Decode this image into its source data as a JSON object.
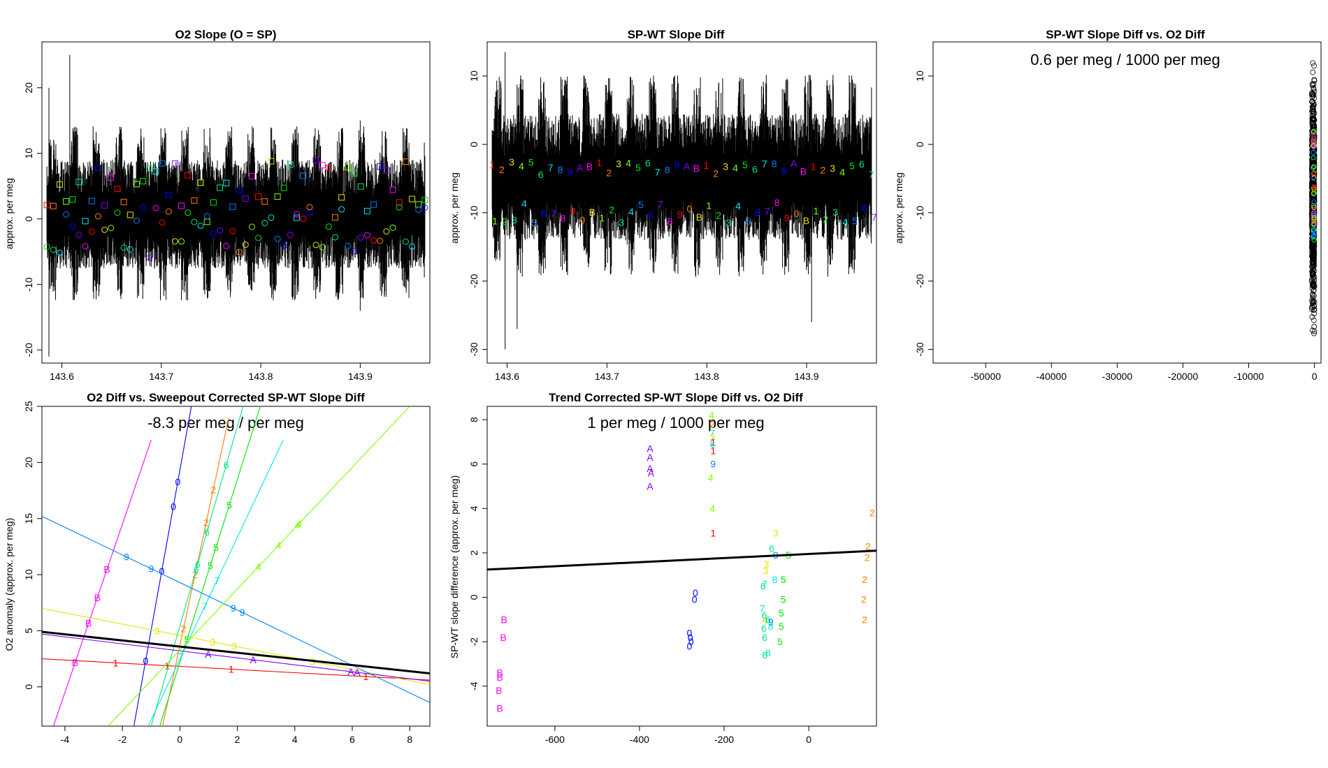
{
  "chart_data": [
    {
      "type": "line",
      "title": "O2 Slope (O = SP)",
      "xlabel": "",
      "ylabel": "approx. per meg",
      "xlim": [
        143.58,
        143.97
      ],
      "ylim": [
        -22,
        27
      ],
      "xticks": [
        143.6,
        143.7,
        143.8,
        143.9
      ],
      "yticks": [
        -20,
        -10,
        0,
        10,
        20
      ],
      "trace": {
        "x_range": [
          143.585,
          143.965
        ],
        "center": 0.5,
        "spread": 4.5,
        "color": "#000000"
      },
      "square_markers": {
        "y_band": [
          -0.5,
          9
        ],
        "count": 60
      },
      "circle_markers": {
        "y_band": [
          -6,
          2
        ],
        "count": 60
      },
      "colors": [
        "#ff0000",
        "#ff8000",
        "#e6e600",
        "#80ff00",
        "#00e600",
        "#00e680",
        "#00e6e6",
        "#0080ff",
        "#0000ff",
        "#8000ff",
        "#ff00ff"
      ]
    },
    {
      "type": "line",
      "title": "SP-WT Slope Diff",
      "xlabel": "",
      "ylabel": "approx. per meg",
      "xlim": [
        143.58,
        143.97
      ],
      "ylim": [
        -32,
        15
      ],
      "xticks": [
        143.6,
        143.7,
        143.8,
        143.9
      ],
      "yticks": [
        -30,
        -20,
        -10,
        0,
        10
      ],
      "trace": {
        "x_range": [
          143.585,
          143.965
        ],
        "center": -5,
        "spread": 5,
        "color": "#000000"
      },
      "digit_labels_upper": [
        "1",
        "2",
        "3",
        "4",
        "5",
        "6",
        "7",
        "8",
        "9",
        "A",
        "B"
      ],
      "digit_labels_lower": [
        "1",
        "2",
        "3",
        "4",
        "5",
        "6",
        "7",
        "8",
        "9",
        "0",
        "B"
      ]
    },
    {
      "type": "scatter",
      "title": "SP-WT Slope Diff vs. O2 Diff",
      "annotation": "0.6 per meg / 1000 per meg",
      "xlabel": "",
      "ylabel": "approx. per meg",
      "xlim": [
        -58000,
        1000
      ],
      "ylim": [
        -32,
        15
      ],
      "xticks": [
        -50000,
        -40000,
        -30000,
        -20000,
        -10000,
        0
      ],
      "yticks": [
        -30,
        -20,
        -10,
        0,
        10
      ],
      "cluster": {
        "x": [
          -400,
          0
        ],
        "y": [
          -31,
          14
        ]
      }
    },
    {
      "type": "scatter",
      "title": "O2 Diff vs. Sweepout Corrected SP-WT Slope Diff",
      "annotation": "-8.3 per meg / per meg",
      "xlabel": "",
      "ylabel": "O2 anomaly (approx. per meg)",
      "xlim": [
        -4.8,
        8.7
      ],
      "ylim": [
        -3.5,
        25
      ],
      "xticks": [
        -4,
        -2,
        0,
        2,
        4,
        6,
        8
      ],
      "yticks": [
        0,
        5,
        10,
        15,
        20,
        25
      ],
      "fit_line": {
        "x": [
          -4.8,
          8.7
        ],
        "y": [
          4.9,
          1.2
        ]
      },
      "colored_lines": [
        {
          "label": "B",
          "color": "#ff00ff",
          "x": [
            -4.4,
            -1.0
          ],
          "y": [
            -3.5,
            22
          ]
        },
        {
          "label": "0",
          "color": "#0000ff",
          "x": [
            -1.6,
            0.4
          ],
          "y": [
            -3.5,
            25
          ]
        },
        {
          "label": "1",
          "color": "#ff0000",
          "x": [
            -4.8,
            8.7
          ],
          "y": [
            2.5,
            0.6
          ]
        },
        {
          "label": "2",
          "color": "#ff8000",
          "x": [
            -0.6,
            1.7
          ],
          "y": [
            -3.5,
            24
          ]
        },
        {
          "label": "3",
          "color": "#e6e600",
          "x": [
            -4.8,
            8.7
          ],
          "y": [
            7.0,
            0.2
          ]
        },
        {
          "label": "5",
          "color": "#00e600",
          "x": [
            -0.7,
            2.8
          ],
          "y": [
            -3.5,
            25
          ]
        },
        {
          "label": "6",
          "color": "#00e680",
          "x": [
            -1.0,
            2.2
          ],
          "y": [
            -3.5,
            25
          ]
        },
        {
          "label": "7",
          "color": "#00e6e6",
          "x": [
            -1.1,
            3.6
          ],
          "y": [
            -3.5,
            22
          ]
        },
        {
          "label": "9",
          "color": "#0080ff",
          "x": [
            -4.8,
            8.7
          ],
          "y": [
            15.2,
            -1.4
          ]
        },
        {
          "label": "A",
          "color": "#8000ff",
          "x": [
            -4.8,
            8.7
          ],
          "y": [
            4.7,
            0.5
          ]
        },
        {
          "label": "4",
          "color": "#80ff00",
          "x": [
            -2.5,
            8.0
          ],
          "y": [
            -3.5,
            25
          ]
        }
      ]
    },
    {
      "type": "scatter",
      "title": "Trend Corrected SP-WT Slope Diff vs. O2 Diff",
      "annotation": "1 per meg / 1000 per meg",
      "xlabel": "",
      "ylabel": "SP-WT slope difference (approx. per meg)",
      "xlim": [
        -760,
        160
      ],
      "ylim": [
        -5.8,
        8.6
      ],
      "xticks": [
        -600,
        -400,
        -200,
        0
      ],
      "yticks": [
        -4,
        -2,
        0,
        2,
        4,
        6,
        8
      ],
      "fit_line": {
        "x": [
          -760,
          160
        ],
        "y": [
          1.25,
          2.1
        ]
      },
      "points": [
        {
          "t": "B",
          "x": -720,
          "y": -1.0,
          "c": "#ff00ff"
        },
        {
          "t": "B",
          "x": -722,
          "y": -1.8,
          "c": "#ff00ff"
        },
        {
          "t": "B",
          "x": -730,
          "y": -3.4,
          "c": "#ff00ff"
        },
        {
          "t": "B",
          "x": -730,
          "y": -3.6,
          "c": "#ff00ff"
        },
        {
          "t": "B",
          "x": -732,
          "y": -4.2,
          "c": "#ff00ff"
        },
        {
          "t": "B",
          "x": -730,
          "y": -5.0,
          "c": "#ff00ff"
        },
        {
          "t": "A",
          "x": -375,
          "y": 6.7,
          "c": "#8000ff"
        },
        {
          "t": "A",
          "x": -375,
          "y": 6.3,
          "c": "#8000ff"
        },
        {
          "t": "A",
          "x": -375,
          "y": 5.8,
          "c": "#8000ff"
        },
        {
          "t": "A",
          "x": -373,
          "y": 5.6,
          "c": "#8000ff"
        },
        {
          "t": "A",
          "x": -375,
          "y": 5.0,
          "c": "#8000ff"
        },
        {
          "t": "0",
          "x": -268,
          "y": 0.2,
          "c": "#0000ff"
        },
        {
          "t": "0",
          "x": -270,
          "y": -0.1,
          "c": "#0000ff"
        },
        {
          "t": "0",
          "x": -282,
          "y": -1.6,
          "c": "#0000ff"
        },
        {
          "t": "0",
          "x": -280,
          "y": -1.8,
          "c": "#0000ff"
        },
        {
          "t": "0",
          "x": -278,
          "y": -2.0,
          "c": "#0000ff"
        },
        {
          "t": "0",
          "x": -282,
          "y": -2.2,
          "c": "#0000ff"
        },
        {
          "t": "4",
          "x": -230,
          "y": 8.2,
          "c": "#80ff00"
        },
        {
          "t": "2",
          "x": -228,
          "y": 7.8,
          "c": "#ff8000"
        },
        {
          "t": "7",
          "x": -228,
          "y": 7.4,
          "c": "#00e6e6"
        },
        {
          "t": "3",
          "x": -227,
          "y": 7.2,
          "c": "#e6e600"
        },
        {
          "t": "1",
          "x": -226,
          "y": 7.0,
          "c": "#ff0000"
        },
        {
          "t": "8",
          "x": -228,
          "y": 6.9,
          "c": "#00e6e6"
        },
        {
          "t": "1",
          "x": -226,
          "y": 6.6,
          "c": "#ff0000"
        },
        {
          "t": "9",
          "x": -226,
          "y": 6.0,
          "c": "#0080ff"
        },
        {
          "t": "4",
          "x": -232,
          "y": 5.4,
          "c": "#80ff00"
        },
        {
          "t": "4",
          "x": -228,
          "y": 4.0,
          "c": "#80ff00"
        },
        {
          "t": "1",
          "x": -226,
          "y": 2.9,
          "c": "#ff0000"
        },
        {
          "t": "3",
          "x": -78,
          "y": 2.9,
          "c": "#e6e600"
        },
        {
          "t": "6",
          "x": -88,
          "y": 2.2,
          "c": "#00e680"
        },
        {
          "t": "9",
          "x": -78,
          "y": 1.9,
          "c": "#0080ff"
        },
        {
          "t": "5",
          "x": -48,
          "y": 1.9,
          "c": "#00e600"
        },
        {
          "t": "3",
          "x": -100,
          "y": 1.5,
          "c": "#e6e600"
        },
        {
          "t": "3",
          "x": -102,
          "y": 1.2,
          "c": "#e6e600"
        },
        {
          "t": "8",
          "x": -80,
          "y": 0.8,
          "c": "#00e6e6"
        },
        {
          "t": "5",
          "x": -60,
          "y": 0.8,
          "c": "#00e600"
        },
        {
          "t": "7",
          "x": -104,
          "y": 0.6,
          "c": "#00e6e6"
        },
        {
          "t": "6",
          "x": -108,
          "y": 0.5,
          "c": "#00e680"
        },
        {
          "t": "5",
          "x": -60,
          "y": -0.1,
          "c": "#00e600"
        },
        {
          "t": "7",
          "x": -110,
          "y": -0.5,
          "c": "#00e6e6"
        },
        {
          "t": "5",
          "x": -65,
          "y": -0.7,
          "c": "#00e600"
        },
        {
          "t": "6",
          "x": -105,
          "y": -0.8,
          "c": "#00e680"
        },
        {
          "t": "4",
          "x": -104,
          "y": -1.0,
          "c": "#80ff00"
        },
        {
          "t": "6",
          "x": -96,
          "y": -1.0,
          "c": "#00e680"
        },
        {
          "t": "9",
          "x": -90,
          "y": -1.1,
          "c": "#0080ff"
        },
        {
          "t": "8",
          "x": -90,
          "y": -1.3,
          "c": "#00e6e6"
        },
        {
          "t": "5",
          "x": -65,
          "y": -1.3,
          "c": "#00e600"
        },
        {
          "t": "6",
          "x": -106,
          "y": -1.4,
          "c": "#00e680"
        },
        {
          "t": "6",
          "x": -104,
          "y": -1.8,
          "c": "#00e680"
        },
        {
          "t": "5",
          "x": -68,
          "y": -2.0,
          "c": "#00e600"
        },
        {
          "t": "8",
          "x": -96,
          "y": -2.5,
          "c": "#00e6e6"
        },
        {
          "t": "6",
          "x": -104,
          "y": -2.6,
          "c": "#00e680"
        },
        {
          "t": "2",
          "x": 150,
          "y": 3.8,
          "c": "#ff8000"
        },
        {
          "t": "2",
          "x": 140,
          "y": 2.3,
          "c": "#ff8000"
        },
        {
          "t": "2",
          "x": 138,
          "y": 1.8,
          "c": "#ff8000"
        },
        {
          "t": "2",
          "x": 132,
          "y": 0.8,
          "c": "#ff8000"
        },
        {
          "t": "2",
          "x": 130,
          "y": -0.1,
          "c": "#ff8000"
        },
        {
          "t": "2",
          "x": 132,
          "y": -1.0,
          "c": "#ff8000"
        }
      ]
    }
  ]
}
